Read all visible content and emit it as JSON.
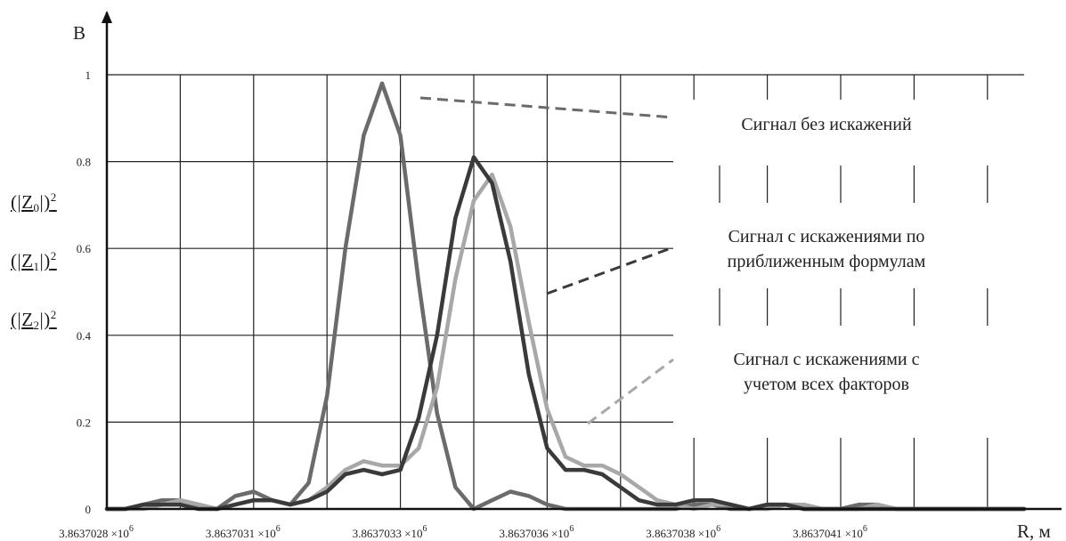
{
  "chart_data": {
    "type": "line",
    "ylabel": "B",
    "xlabel": "R, м",
    "ylim": [
      0,
      1.0
    ],
    "yticks": [
      "0",
      "0.2",
      "0.4",
      "0.6",
      "0.8",
      "1"
    ],
    "xtick_labels": [
      "3.8637028",
      "3.8637031",
      "3.8637033",
      "3.8637036",
      "3.8637038",
      "3.8637041"
    ],
    "xtick_unit": "×10",
    "xtick_exp": "6",
    "grid": true,
    "legend": [
      {
        "label": "Z",
        "sub": "0",
        "pow": "2",
        "color": "#6b6b6b"
      },
      {
        "label": "Z",
        "sub": "1",
        "pow": "2",
        "color": "#a8a8a8"
      },
      {
        "label": "Z",
        "sub": "2",
        "pow": "2",
        "color": "#3a3a3a"
      }
    ],
    "annotations": [
      {
        "lines": [
          "Сигнал без искажений"
        ]
      },
      {
        "lines": [
          "Сигнал с искажениями по",
          "приближенным формулам"
        ]
      },
      {
        "lines": [
          "Сигнал с искажениями с",
          "учетом всех факторов"
        ]
      }
    ],
    "x": [
      0.0,
      0.25,
      0.5,
      0.75,
      1.0,
      1.25,
      1.5,
      1.75,
      2.0,
      2.25,
      2.5,
      2.75,
      3.0,
      3.25,
      3.5,
      3.75,
      4.0,
      4.25,
      4.5,
      4.75,
      5.0,
      5.25,
      5.5,
      5.75,
      6.0,
      6.25,
      6.5,
      6.75,
      7.0,
      7.25,
      7.5,
      7.75,
      8.0,
      8.25,
      8.5,
      8.75,
      9.0,
      9.25,
      9.5,
      9.75,
      10.0,
      10.25,
      10.5,
      10.75,
      11.0,
      11.25,
      11.5,
      11.75,
      12.0,
      12.25,
      12.5
    ],
    "series": [
      {
        "values": [
          0.0,
          0.0,
          0.01,
          0.02,
          0.02,
          0.01,
          0.0,
          0.03,
          0.04,
          0.02,
          0.01,
          0.06,
          0.26,
          0.6,
          0.86,
          0.98,
          0.86,
          0.52,
          0.22,
          0.05,
          0.0,
          0.02,
          0.04,
          0.03,
          0.01,
          0.0,
          0.0,
          0.0,
          0.0,
          0.0,
          0.0,
          0.0,
          0.01,
          0.01,
          0.0,
          0.0,
          0.01,
          0.01,
          0.0,
          0.0,
          0.0,
          0.01,
          0.01,
          0.0,
          0.0,
          0.0,
          0.0,
          0.0,
          0.0,
          0.0,
          0.0
        ]
      },
      {
        "values": [
          0.0,
          0.0,
          0.0,
          0.01,
          0.02,
          0.01,
          0.0,
          0.01,
          0.02,
          0.02,
          0.01,
          0.02,
          0.05,
          0.09,
          0.11,
          0.1,
          0.1,
          0.14,
          0.28,
          0.53,
          0.71,
          0.77,
          0.65,
          0.43,
          0.23,
          0.12,
          0.1,
          0.1,
          0.08,
          0.05,
          0.02,
          0.01,
          0.0,
          0.01,
          0.01,
          0.0,
          0.0,
          0.01,
          0.01,
          0.0,
          0.0,
          0.0,
          0.01,
          0.0,
          0.0,
          0.0,
          0.0,
          0.0,
          0.0,
          0.0,
          0.0
        ]
      },
      {
        "values": [
          0.0,
          0.0,
          0.01,
          0.01,
          0.01,
          0.0,
          0.0,
          0.01,
          0.02,
          0.02,
          0.01,
          0.02,
          0.04,
          0.08,
          0.09,
          0.08,
          0.09,
          0.21,
          0.4,
          0.67,
          0.81,
          0.75,
          0.57,
          0.31,
          0.14,
          0.09,
          0.09,
          0.08,
          0.05,
          0.02,
          0.01,
          0.01,
          0.02,
          0.02,
          0.01,
          0.0,
          0.01,
          0.01,
          0.0,
          0.0,
          0.0,
          0.0,
          0.0,
          0.0,
          0.0,
          0.0,
          0.0,
          0.0,
          0.0,
          0.0,
          0.0
        ]
      }
    ]
  }
}
